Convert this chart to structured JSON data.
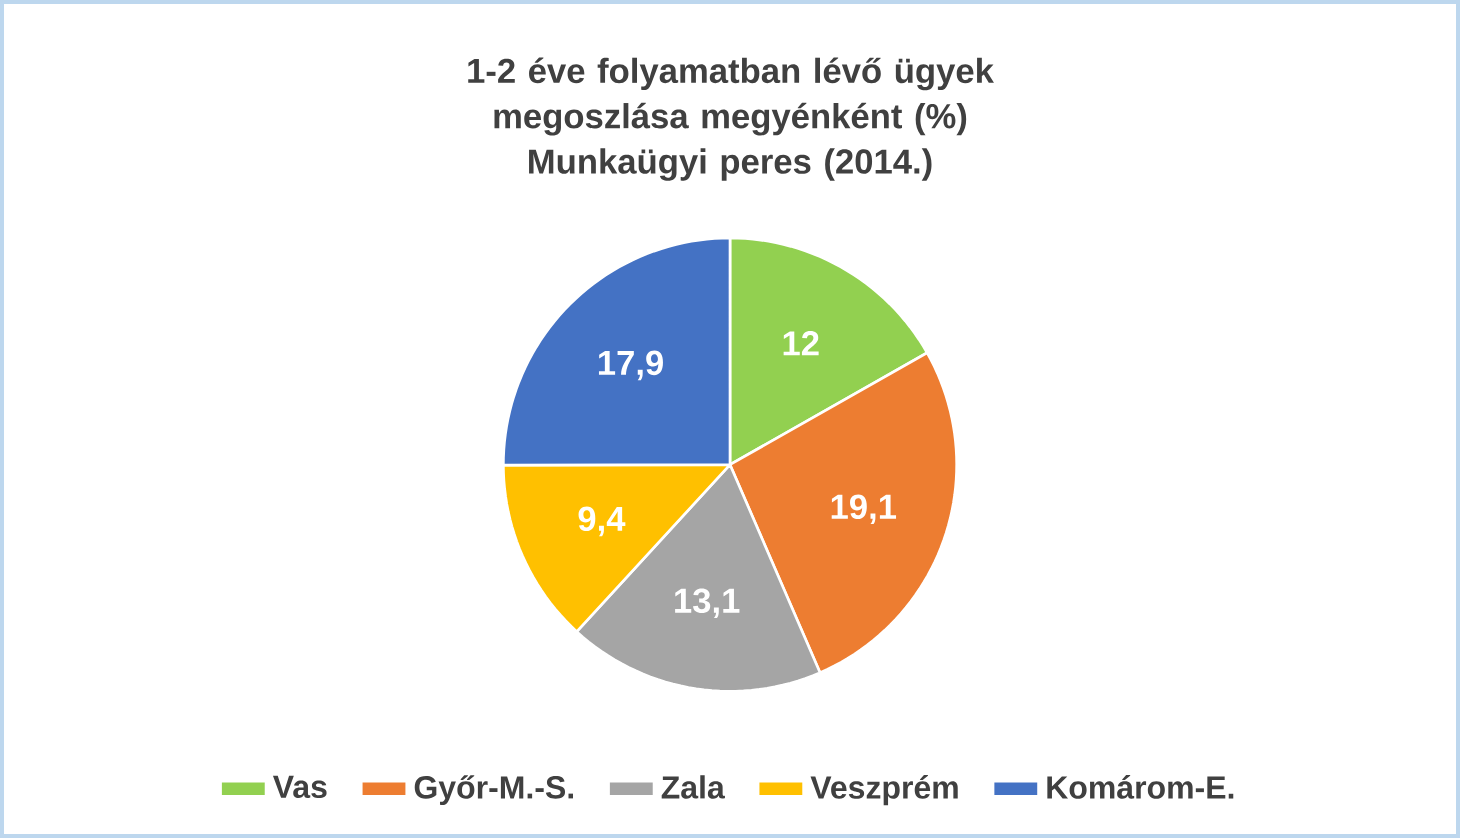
{
  "chart_data": {
    "type": "pie",
    "title": "1-2 éve folyamatban lévő ügyek megoszlása megyénként (%)",
    "subtitle": "Munkaügyi peres (2014.)",
    "categories": [
      "Vas",
      "Győr-M.-S.",
      "Zala",
      "Veszprém",
      "Komárom-E."
    ],
    "values": [
      12,
      19.1,
      13.1,
      9.4,
      17.9
    ],
    "value_labels": [
      "12",
      "19,1",
      "13,1",
      "9,4",
      "17,9"
    ],
    "colors": [
      "#92d050",
      "#ed7d31",
      "#a5a5a5",
      "#ffc000",
      "#4472c4"
    ],
    "legend": "bottom"
  }
}
